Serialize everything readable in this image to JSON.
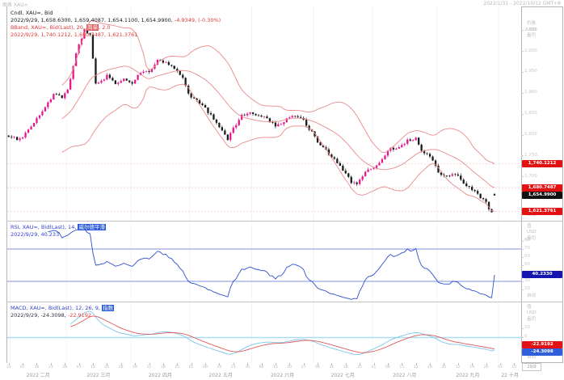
{
  "window": {
    "title_left": "图表 XAU=",
    "title_right": "2022/1/31 - 2022/10/12 GMT+8"
  },
  "price_panel": {
    "legend": {
      "line1": "Cndl, XAU=, Bid",
      "line2_black": "2022/9/29, 1,658.6300, 1,659.4087, 1,654.1100, 1,654.9900,",
      "line2_red": "-4.9349, (-0.30%)",
      "line3_prefix": "BBand, XAU=, Bid(Last), 20, ",
      "line3_highlight": "简单",
      "line3_suffix": ", 2.0",
      "line4": "2022/9/29, 1,740.1212, 1,680.7487, 1,621.3761"
    },
    "axis_header": [
      "价格",
      "USD",
      "盎司"
    ],
    "axis_ticks": [
      "2,050",
      "2,000",
      "1,950",
      "1,900",
      "1,850",
      "1,800",
      "1,750",
      "1,700",
      "1,650"
    ],
    "badges": {
      "upper": "1,740.1212",
      "middle": "1,680.7487",
      "last": "1,654.9900",
      "lower": "1,621.3761"
    },
    "auto_label": "自动"
  },
  "rsi_panel": {
    "legend": {
      "line1_prefix": "RSI, XAU=, Bid(Last), 14, ",
      "line1_highlight": "威尔德平滑",
      "line2": "2022/9/29, 40.233"
    },
    "axis_header": [
      "值",
      "USD",
      "盎司"
    ],
    "axis_ticks": [
      "80",
      "70",
      "60",
      "50",
      "30",
      "20"
    ],
    "badge": "40.2330",
    "auto_label": "自动"
  },
  "macd_panel": {
    "legend": {
      "line1_prefix": "MACD, XAU=, Bid(Last), 12, 26, 9, ",
      "line1_highlight": "指数",
      "line2_dark": "2022/9/29, -24.3098,",
      "line2_red": "-22.9192"
    },
    "axis_header": [
      "值",
      "USD",
      "盎司"
    ],
    "axis_ticks": [
      "20",
      "0"
    ],
    "badge_signal": "-22.9192",
    "badge_macd": "-24.3098",
    "auto_label": "自动"
  },
  "x_axis": {
    "day_ticks": [
      "31",
      "07",
      "14",
      "21",
      "28",
      "07",
      "14",
      "21",
      "28",
      "04",
      "11",
      "18",
      "25",
      "02",
      "09",
      "16",
      "23",
      "30",
      "06",
      "13",
      "20",
      "27",
      "04",
      "11",
      "18",
      "25",
      "01",
      "08",
      "15",
      "22",
      "29",
      "05",
      "12",
      "19",
      "26",
      "03",
      "10"
    ],
    "months": [
      {
        "label": "2022 二月",
        "start": 1
      },
      {
        "label": "2022 三月",
        "start": 21
      },
      {
        "label": "2022 四月",
        "start": 44
      },
      {
        "label": "2022 五月",
        "start": 65
      },
      {
        "label": "2022 六月",
        "start": 87
      },
      {
        "label": "2022 七月",
        "start": 109
      },
      {
        "label": "2022 八月",
        "start": 130
      },
      {
        "label": "2022 九月",
        "start": 153
      },
      {
        "label": "22 十月",
        "start": 175
      }
    ],
    "end_box": "29/9",
    "total_days": 183
  },
  "chart_data": {
    "type": "candlestick",
    "instrument": "XAU=",
    "field": "Bid",
    "interval": "daily",
    "last_candle": {
      "date": "2022/9/29",
      "open": 1658.63,
      "high": 1659.4087,
      "low": 1654.11,
      "close": 1654.99,
      "change": -4.9349,
      "change_pct": "-0.30%"
    },
    "close_anchors": [
      [
        0,
        1795
      ],
      [
        4,
        1788
      ],
      [
        8,
        1818
      ],
      [
        12,
        1856
      ],
      [
        16,
        1898
      ],
      [
        19,
        1890
      ],
      [
        21,
        1905
      ],
      [
        24,
        1995
      ],
      [
        27,
        2048
      ],
      [
        29,
        2040
      ],
      [
        31,
        1920
      ],
      [
        33,
        1928
      ],
      [
        35,
        1942
      ],
      [
        38,
        1922
      ],
      [
        41,
        1932
      ],
      [
        44,
        1925
      ],
      [
        47,
        1948
      ],
      [
        50,
        1952
      ],
      [
        53,
        1976
      ],
      [
        56,
        1974
      ],
      [
        59,
        1956
      ],
      [
        62,
        1938
      ],
      [
        64,
        1896
      ],
      [
        67,
        1882
      ],
      [
        70,
        1862
      ],
      [
        73,
        1838
      ],
      [
        76,
        1810
      ],
      [
        78,
        1790
      ],
      [
        80,
        1814
      ],
      [
        83,
        1846
      ],
      [
        86,
        1852
      ],
      [
        89,
        1844
      ],
      [
        92,
        1838
      ],
      [
        95,
        1822
      ],
      [
        98,
        1830
      ],
      [
        101,
        1848
      ],
      [
        103,
        1840
      ],
      [
        105,
        1834
      ],
      [
        108,
        1806
      ],
      [
        110,
        1782
      ],
      [
        113,
        1762
      ],
      [
        116,
        1742
      ],
      [
        119,
        1716
      ],
      [
        122,
        1688
      ],
      [
        124,
        1682
      ],
      [
        127,
        1710
      ],
      [
        130,
        1724
      ],
      [
        133,
        1742
      ],
      [
        136,
        1766
      ],
      [
        139,
        1772
      ],
      [
        142,
        1786
      ],
      [
        145,
        1792
      ],
      [
        147,
        1762
      ],
      [
        150,
        1748
      ],
      [
        153,
        1710
      ],
      [
        156,
        1700
      ],
      [
        159,
        1708
      ],
      [
        161,
        1690
      ],
      [
        163,
        1674
      ],
      [
        166,
        1668
      ],
      [
        168,
        1650
      ],
      [
        170,
        1636
      ],
      [
        171,
        1622
      ],
      [
        172,
        1616
      ],
      [
        173,
        1654.99
      ]
    ],
    "bollinger": {
      "period": 20,
      "stddev": 2.0,
      "method": "简单",
      "last_upper": 1740.1212,
      "last_middle": 1680.7487,
      "last_lower": 1621.3761
    },
    "rsi": {
      "period": 14,
      "smoothing": "威尔德平滑",
      "last": 40.233,
      "ref_lines": [
        70,
        30
      ]
    },
    "macd": {
      "fast": 12,
      "slow": 26,
      "signal": 9,
      "method": "指数",
      "last_macd": -24.3098,
      "last_signal": -22.9192
    },
    "colors": {
      "up": "#e5188e",
      "down": "#1c1c1c",
      "bollinger": "#e98a8a",
      "rsi_line": "#2f4fd0",
      "rsi_ref": "#8090dd",
      "macd_line": "#7cc4ea",
      "signal_line": "#de5b5b",
      "zero_line": "#aadcf2",
      "badge_red": "#e31212",
      "badge_black": "#111111",
      "badge_navy": "#1515b0",
      "badge_blue": "#2e5ed9"
    }
  }
}
